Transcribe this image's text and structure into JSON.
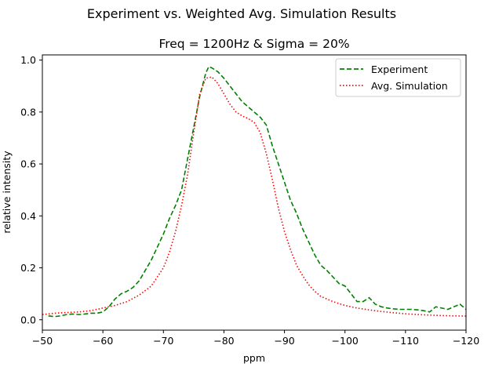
{
  "chart_data": {
    "type": "line",
    "suptitle": "Experiment vs. Weighted Avg. Simulation Results",
    "title": "Freq = 1200Hz & Sigma = 20%",
    "xlabel": "ppm",
    "ylabel": "relative intensity",
    "xlim": [
      -50,
      -120
    ],
    "ylim": [
      -0.04,
      1.02
    ],
    "x_ticks": [
      -50,
      -60,
      -70,
      -80,
      -90,
      -100,
      -110,
      -120
    ],
    "x_tick_labels": [
      "−50",
      "−60",
      "−70",
      "−80",
      "−90",
      "−100",
      "−110",
      "−120"
    ],
    "y_ticks": [
      0.0,
      0.2,
      0.4,
      0.6,
      0.8,
      1.0
    ],
    "y_tick_labels": [
      "0.0",
      "0.2",
      "0.4",
      "0.6",
      "0.8",
      "1.0"
    ],
    "grid": false,
    "legend_position": "top-right",
    "series": [
      {
        "name": "Experiment",
        "color": "#008000",
        "style": "dashed",
        "x": [
          -51,
          -52,
          -53,
          -54,
          -55,
          -56,
          -57,
          -58,
          -59,
          -60,
          -61,
          -62,
          -63,
          -64,
          -65,
          -66,
          -67,
          -68,
          -69,
          -70,
          -71,
          -72,
          -73,
          -74,
          -75,
          -76,
          -77,
          -77.5,
          -78,
          -79,
          -80,
          -81,
          -82,
          -83,
          -84,
          -85,
          -86,
          -87,
          -88,
          -89,
          -90,
          -91,
          -92,
          -93,
          -94,
          -95,
          -96,
          -97,
          -98,
          -99,
          -100,
          -101,
          -102,
          -103,
          -104,
          -105,
          -106,
          -107,
          -108,
          -109,
          -110,
          -111,
          -112,
          -113,
          -114,
          -115,
          -116,
          -117,
          -118,
          -119,
          -120
        ],
        "y": [
          0.015,
          0.012,
          0.015,
          0.02,
          0.022,
          0.02,
          0.022,
          0.025,
          0.025,
          0.03,
          0.05,
          0.08,
          0.1,
          0.11,
          0.125,
          0.15,
          0.19,
          0.23,
          0.28,
          0.33,
          0.39,
          0.44,
          0.5,
          0.62,
          0.74,
          0.86,
          0.95,
          0.975,
          0.97,
          0.955,
          0.93,
          0.9,
          0.87,
          0.84,
          0.82,
          0.8,
          0.78,
          0.75,
          0.67,
          0.6,
          0.53,
          0.46,
          0.41,
          0.35,
          0.3,
          0.25,
          0.21,
          0.19,
          0.165,
          0.14,
          0.13,
          0.1,
          0.07,
          0.07,
          0.085,
          0.06,
          0.05,
          0.045,
          0.042,
          0.04,
          0.04,
          0.04,
          0.038,
          0.035,
          0.03,
          0.05,
          0.045,
          0.04,
          0.05,
          0.06,
          0.04
        ]
      },
      {
        "name": "Avg. Simulation",
        "color": "#ff0000",
        "style": "dotted",
        "x": [
          -50,
          -52,
          -54,
          -56,
          -58,
          -60,
          -62,
          -64,
          -66,
          -68,
          -70,
          -71,
          -72,
          -73,
          -74,
          -75,
          -76,
          -77,
          -78,
          -79,
          -80,
          -81,
          -82,
          -83,
          -84,
          -85,
          -86,
          -87,
          -88,
          -89,
          -90,
          -91,
          -92,
          -93,
          -94,
          -95,
          -96,
          -98,
          -100,
          -102,
          -104,
          -106,
          -108,
          -110,
          -112,
          -114,
          -116,
          -118,
          -120
        ],
        "y": [
          0.02,
          0.025,
          0.028,
          0.03,
          0.035,
          0.045,
          0.055,
          0.07,
          0.095,
          0.13,
          0.2,
          0.26,
          0.34,
          0.44,
          0.56,
          0.72,
          0.87,
          0.93,
          0.935,
          0.91,
          0.87,
          0.83,
          0.8,
          0.785,
          0.775,
          0.76,
          0.72,
          0.64,
          0.54,
          0.43,
          0.34,
          0.27,
          0.21,
          0.17,
          0.135,
          0.11,
          0.09,
          0.07,
          0.055,
          0.045,
          0.038,
          0.032,
          0.027,
          0.023,
          0.02,
          0.018,
          0.016,
          0.015,
          0.014
        ]
      }
    ]
  }
}
